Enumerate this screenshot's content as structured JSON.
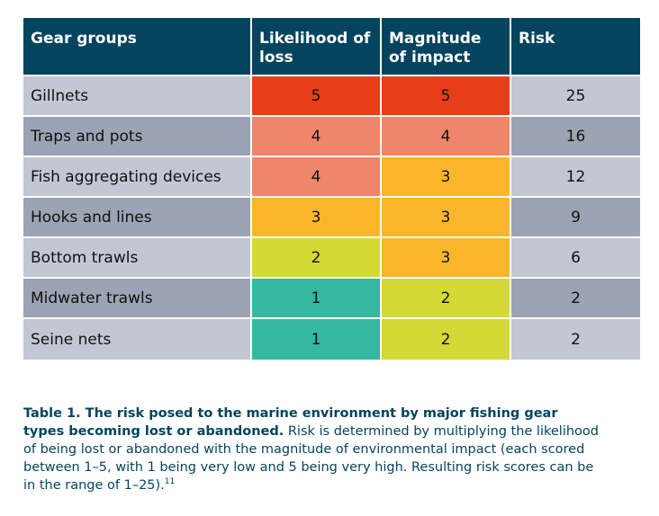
{
  "table": {
    "headers": {
      "gear": "Gear groups",
      "likelihood": "Likelihood of loss",
      "magnitude": "Magnitude of impact",
      "risk": "Risk"
    },
    "rows": [
      {
        "gear": "Gillnets",
        "likelihood": "5",
        "magnitude": "5",
        "risk": "25"
      },
      {
        "gear": "Traps and pots",
        "likelihood": "4",
        "magnitude": "4",
        "risk": "16"
      },
      {
        "gear": "Fish aggregating devices",
        "likelihood": "4",
        "magnitude": "3",
        "risk": "12"
      },
      {
        "gear": "Hooks and lines",
        "likelihood": "3",
        "magnitude": "3",
        "risk": "9"
      },
      {
        "gear": "Bottom trawls",
        "likelihood": "2",
        "magnitude": "3",
        "risk": "6"
      },
      {
        "gear": "Midwater trawls",
        "likelihood": "1",
        "magnitude": "2",
        "risk": "2"
      },
      {
        "gear": "Seine nets",
        "likelihood": "1",
        "magnitude": "2",
        "risk": "2"
      }
    ],
    "score_colors": {
      "5": "#e63e19",
      "4": "#ef856a",
      "3": "#f9b62a",
      "2": "#d4d936",
      "1": "#35b8a1"
    }
  },
  "caption": {
    "bold": "Table 1. The risk posed to the marine environment by major fishing gear types becoming lost or abandoned.",
    "text": " Risk is determined by multiplying the likelihood of being lost or abandoned with the magnitude of environmental impact (each scored between 1–5, with 1 being very low and 5 being very high. Resulting risk scores can be in the range of 1–25).",
    "footnote": "11"
  }
}
